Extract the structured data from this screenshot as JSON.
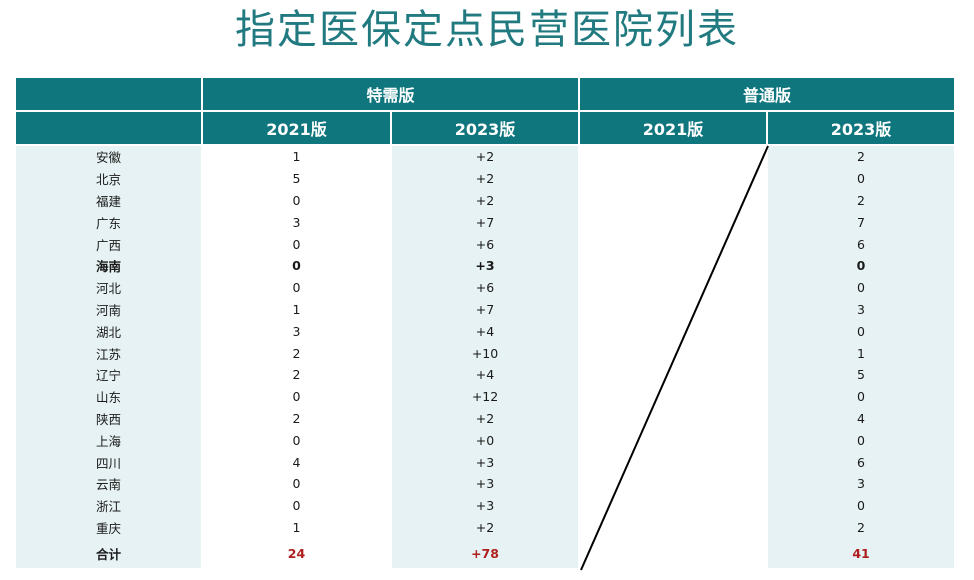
{
  "title": "指定医保定点民营医院列表",
  "header": {
    "group1": "特需版",
    "group2": "普通版",
    "sub": [
      "2021版",
      "2023版",
      "2021版",
      "2023版"
    ]
  },
  "rows": [
    {
      "province": "安徽",
      "t2021": "1",
      "t2023": "+2",
      "p2023": "2"
    },
    {
      "province": "北京",
      "t2021": "5",
      "t2023": "+2",
      "p2023": "0"
    },
    {
      "province": "福建",
      "t2021": "0",
      "t2023": "+2",
      "p2023": "2"
    },
    {
      "province": "广东",
      "t2021": "3",
      "t2023": "+7",
      "p2023": "7"
    },
    {
      "province": "广西",
      "t2021": "0",
      "t2023": "+6",
      "p2023": "6"
    },
    {
      "province": "海南",
      "t2021": "0",
      "t2023": "+3",
      "p2023": "0",
      "bold": true
    },
    {
      "province": "河北",
      "t2021": "0",
      "t2023": "+6",
      "p2023": "0"
    },
    {
      "province": "河南",
      "t2021": "1",
      "t2023": "+7",
      "p2023": "3"
    },
    {
      "province": "湖北",
      "t2021": "3",
      "t2023": "+4",
      "p2023": "0"
    },
    {
      "province": "江苏",
      "t2021": "2",
      "t2023": "+10",
      "p2023": "1"
    },
    {
      "province": "辽宁",
      "t2021": "2",
      "t2023": "+4",
      "p2023": "5"
    },
    {
      "province": "山东",
      "t2021": "0",
      "t2023": "+12",
      "p2023": "0"
    },
    {
      "province": "陕西",
      "t2021": "2",
      "t2023": "+2",
      "p2023": "4"
    },
    {
      "province": "上海",
      "t2021": "0",
      "t2023": "+0",
      "p2023": "0"
    },
    {
      "province": "四川",
      "t2021": "4",
      "t2023": "+3",
      "p2023": "6"
    },
    {
      "province": "云南",
      "t2021": "0",
      "t2023": "+3",
      "p2023": "3"
    },
    {
      "province": "浙江",
      "t2021": "0",
      "t2023": "+3",
      "p2023": "0"
    },
    {
      "province": "重庆",
      "t2021": "1",
      "t2023": "+2",
      "p2023": "2"
    }
  ],
  "total": {
    "label": "合计",
    "t2021": "24",
    "t2023": "+78",
    "p2023": "41"
  },
  "colors": {
    "accent": "#10767e",
    "title": "#217a80",
    "band": "#e6f2f3",
    "total": "#b01f1f"
  }
}
